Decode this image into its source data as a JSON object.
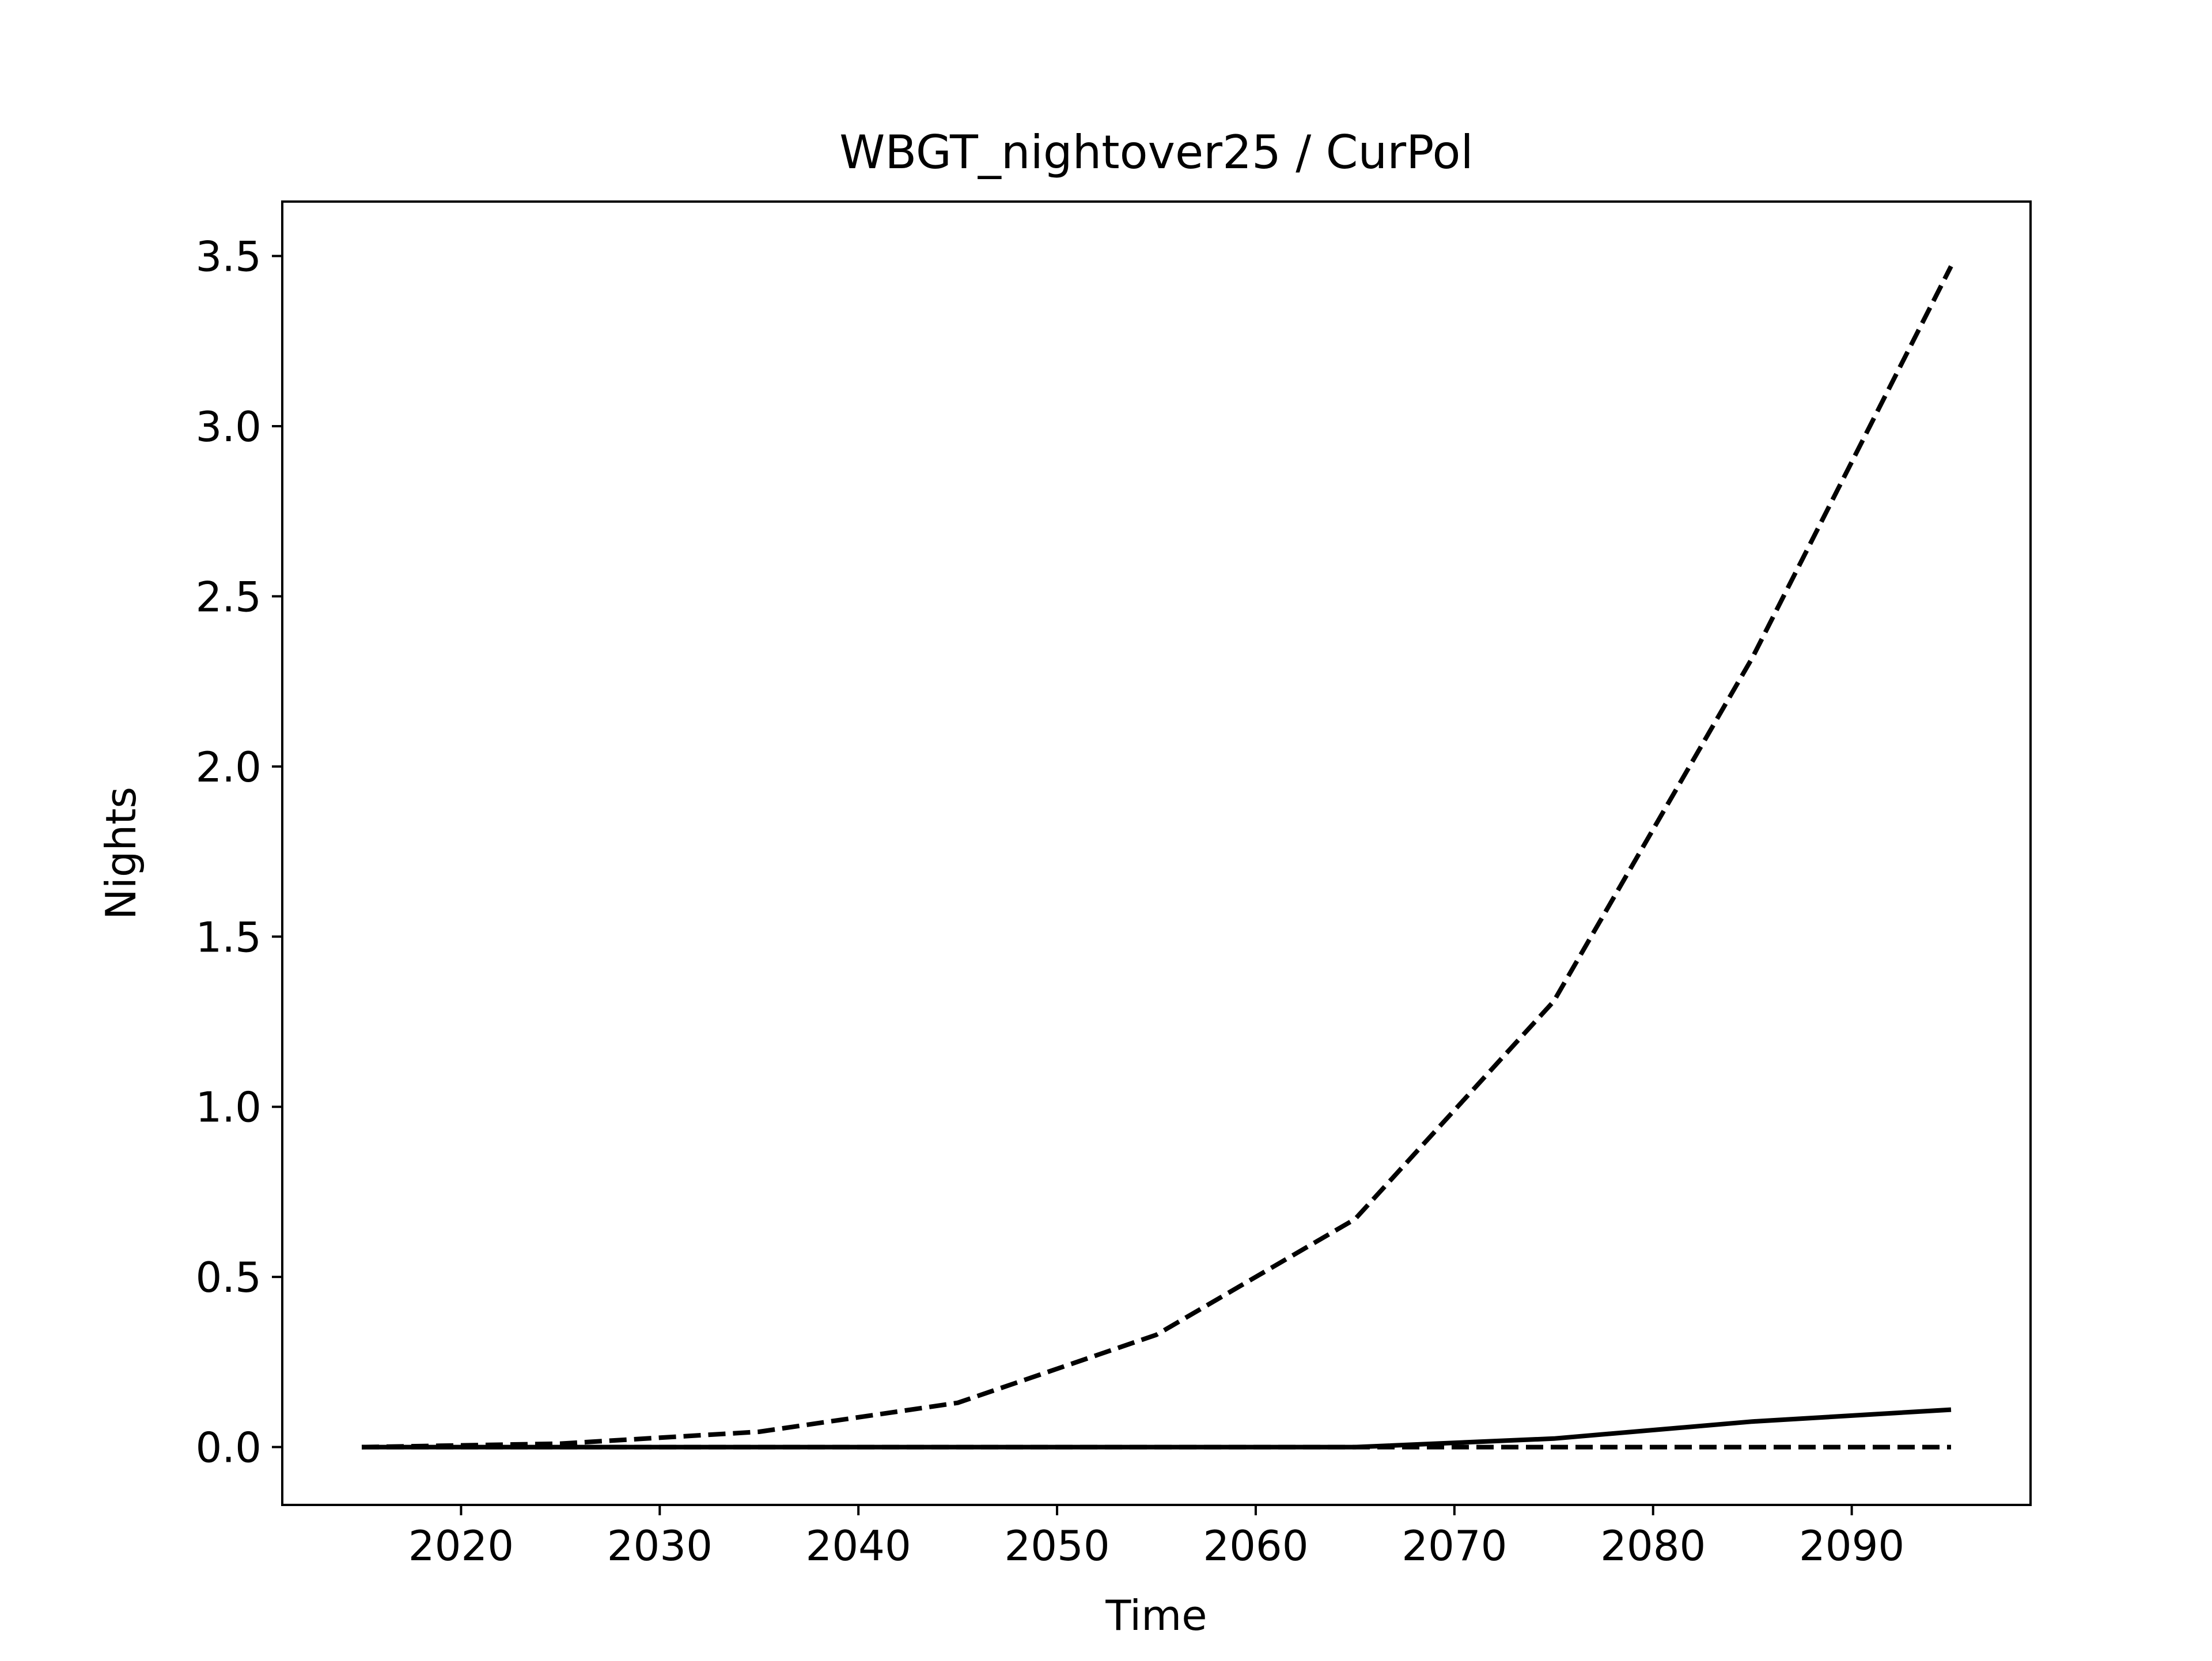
{
  "chart_data": {
    "type": "line",
    "title": "WBGT_nightover25 / CurPol",
    "xlabel": "Time",
    "ylabel": "Nights",
    "xlim": [
      2011,
      2099
    ],
    "ylim": [
      -0.17,
      3.66
    ],
    "xticks": [
      2020,
      2030,
      2040,
      2050,
      2060,
      2070,
      2080,
      2090
    ],
    "xtick_labels": [
      "2020",
      "2030",
      "2040",
      "2050",
      "2060",
      "2070",
      "2080",
      "2090"
    ],
    "yticks": [
      0.0,
      0.5,
      1.0,
      1.5,
      2.0,
      2.5,
      3.0,
      3.5
    ],
    "ytick_labels": [
      "0.0",
      "0.5",
      "1.0",
      "1.5",
      "2.0",
      "2.5",
      "3.0",
      "3.5"
    ],
    "grid": false,
    "legend": "none",
    "x": [
      2015,
      2025,
      2035,
      2045,
      2055,
      2065,
      2075,
      2085,
      2095
    ],
    "series": [
      {
        "style": "dashed",
        "color": "#000000",
        "values": [
          0.0,
          0.01,
          0.045,
          0.13,
          0.33,
          0.67,
          1.31,
          2.32,
          3.47
        ]
      },
      {
        "style": "solid",
        "color": "#000000",
        "values": [
          0.0,
          0.0,
          0.0,
          0.0,
          0.0,
          0.0,
          0.025,
          0.075,
          0.11
        ]
      },
      {
        "style": "dashed",
        "color": "#000000",
        "values": [
          0.0,
          0.0,
          0.0,
          0.0,
          0.0,
          0.0,
          0.0,
          0.0,
          0.0
        ]
      }
    ]
  }
}
